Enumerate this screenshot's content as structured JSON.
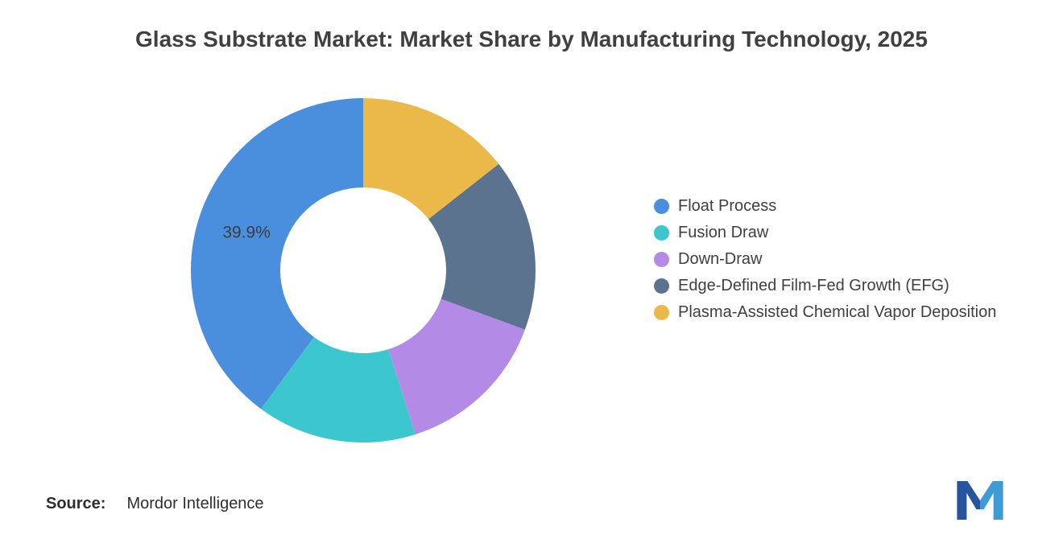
{
  "title": "Glass Substrate Market: Market Share by Manufacturing Technology, 2025",
  "source": {
    "label": "Source:",
    "value": "Mordor Intelligence"
  },
  "chart_data": {
    "type": "pie",
    "subtype": "donut",
    "title": "Glass Substrate Market: Market Share by Manufacturing Technology, 2025",
    "legend_position": "right",
    "direction": "counterclockwise-from-top",
    "series": [
      {
        "name": "Float Process",
        "value": 39.9,
        "color": "#4A8FDE",
        "shown_label": "39.9%"
      },
      {
        "name": "Fusion Draw",
        "value": 15.0,
        "color": "#3CC7CF",
        "shown_label": ""
      },
      {
        "name": "Down-Draw",
        "value": 14.5,
        "color": "#B38AE5",
        "shown_label": ""
      },
      {
        "name": "Edge-Defined Film-Fed Growth (EFG)",
        "value": 16.2,
        "color": "#5C7390",
        "shown_label": ""
      },
      {
        "name": "Plasma-Assisted Chemical Vapor Deposition",
        "value": 14.4,
        "color": "#EBB94A",
        "shown_label": ""
      }
    ]
  },
  "logo_colors": {
    "left": "#27549F",
    "right": "#3E9BD6"
  }
}
